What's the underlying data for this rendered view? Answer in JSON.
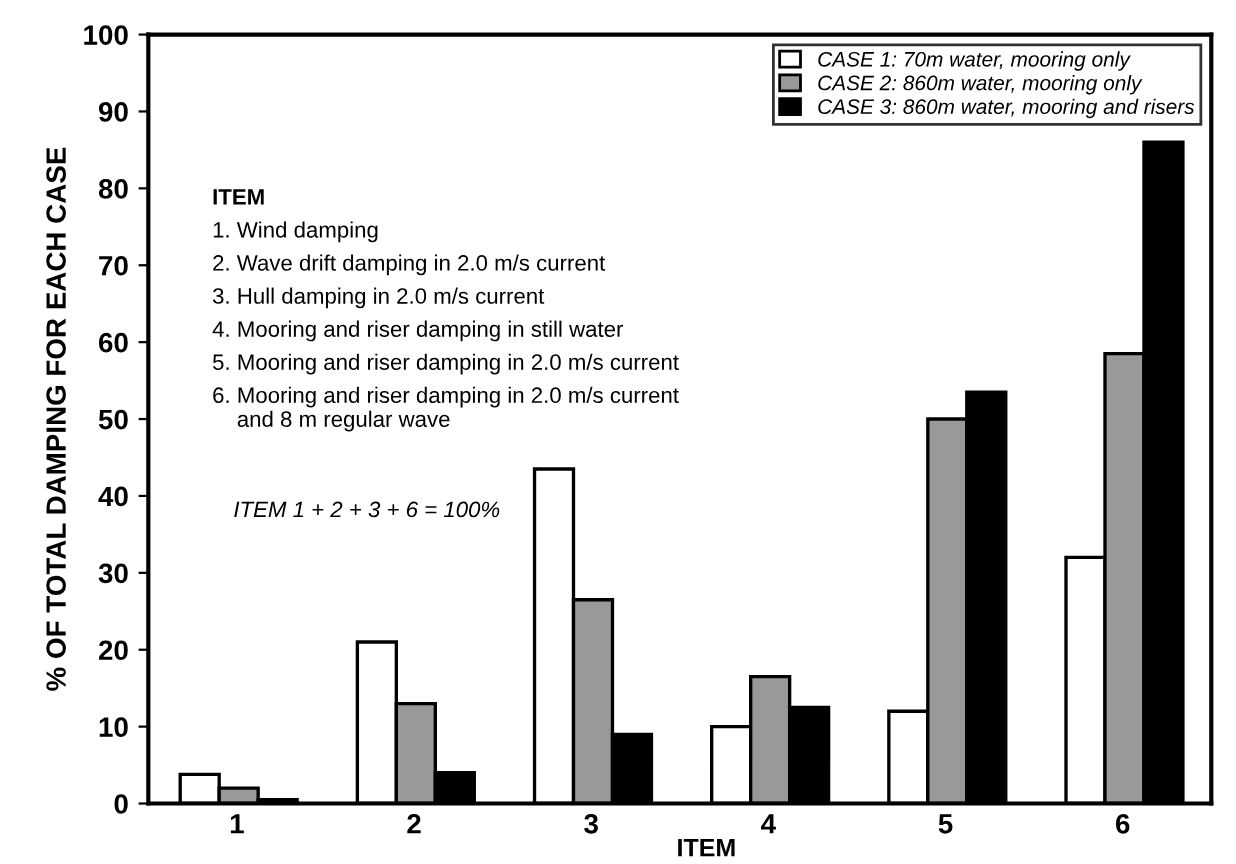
{
  "chart_data": {
    "type": "bar",
    "xlabel": "ITEM",
    "ylabel": "% OF TOTAL DAMPING FOR EACH CASE",
    "categories": [
      "1",
      "2",
      "3",
      "4",
      "5",
      "6"
    ],
    "series": [
      {
        "name": "CASE 1: 70m water, mooring only",
        "color": "#ffffff",
        "values": [
          3.8,
          21,
          43.5,
          10,
          12,
          32
        ]
      },
      {
        "name": "CASE 2: 860m water, mooring only",
        "color": "#999999",
        "values": [
          2,
          13,
          26.5,
          16.5,
          50,
          58.5
        ]
      },
      {
        "name": "CASE 3: 860m water, mooring and risers",
        "color": "#000000",
        "values": [
          0.5,
          4,
          9,
          12.5,
          53.5,
          86
        ]
      }
    ],
    "ylim": [
      0,
      100
    ],
    "yticks": [
      0,
      10,
      20,
      30,
      40,
      50,
      60,
      70,
      80,
      90,
      100
    ],
    "grid": false,
    "legend": "top right",
    "annotations": [
      "ITEM",
      "1. Wind damping",
      "2. Wave drift damping in 2.0 m/s current",
      "3. Hull damping in 2.0 m/s current",
      "4. Mooring and riser damping in still water",
      "5. Mooring and riser damping in 2.0 m/s current",
      "6. Mooring and riser damping in 2.0 m/s current\n    and 8 m regular wave",
      "ITEM 1 + 2 + 3 + 6 = 100%"
    ]
  }
}
